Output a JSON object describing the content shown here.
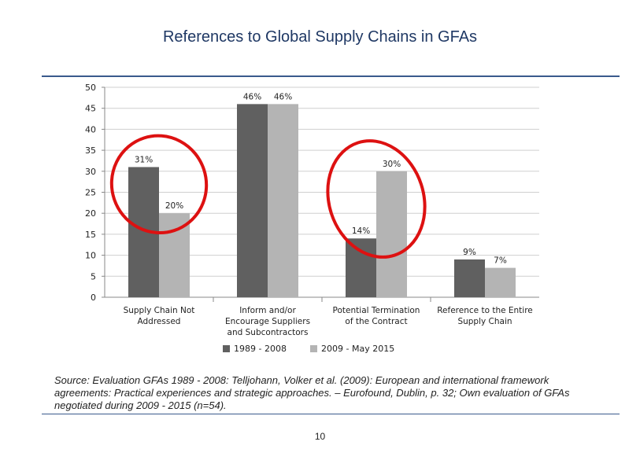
{
  "slide": {
    "title": "References to Global Supply Chains in GFAs",
    "source": "Source: Evaluation GFAs 1989 - 2008: Telljohann, Volker et al. (2009): European and international framework agreements: Practical experiences and strategic approaches. – Eurofound, Dublin, p. 32; Own evaluation of GFAs negotiated during 2009 - 2015 (n=54).",
    "page_number": "10"
  },
  "chart_data": {
    "type": "bar",
    "categories": [
      [
        "Supply Chain Not",
        "Addressed"
      ],
      [
        "Inform and/or",
        "Encourage Suppliers",
        "and Subcontractors"
      ],
      [
        "Potential Termination",
        "of the Contract"
      ],
      [
        "Reference to the Entire",
        "Supply Chain"
      ]
    ],
    "series": [
      {
        "name": "1989 - 2008",
        "values": [
          31,
          46,
          14,
          9
        ],
        "labels": [
          "31%",
          "46%",
          "14%",
          "9%"
        ],
        "color": "#606060"
      },
      {
        "name": "2009 - May 2015",
        "values": [
          20,
          46,
          30,
          7
        ],
        "labels": [
          "20%",
          "46%",
          "30%",
          "7%"
        ],
        "color": "#b4b4b4"
      }
    ],
    "ylim": [
      0,
      50
    ],
    "yticks": [
      0,
      5,
      10,
      15,
      20,
      25,
      30,
      35,
      40,
      45,
      50
    ],
    "grid": true,
    "legend": "bottom",
    "highlight_color": "#dd1111",
    "highlighted_categories": [
      0,
      2
    ]
  }
}
